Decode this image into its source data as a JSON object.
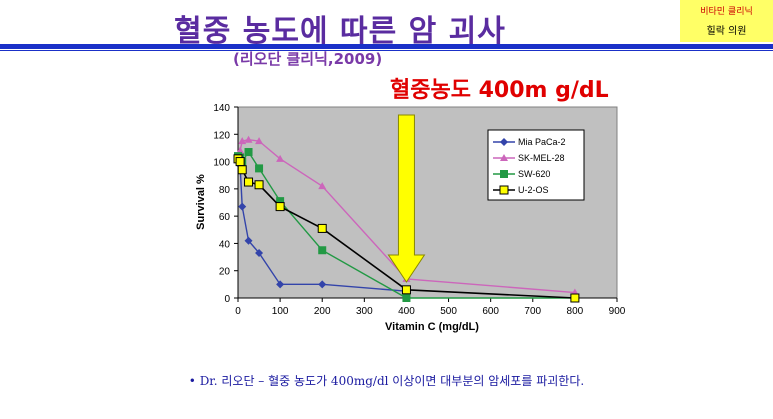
{
  "header": {
    "title": "혈중 농도에 따른 암 괴사",
    "subtitle": "(리오단 클리닉,2009)",
    "badge_line1": "비타민 클리닉",
    "badge_line2": "힐락 의원",
    "highlight": "혈중농도 400m g/dL"
  },
  "footer": {
    "note": "• Dr. 리오단 – 혈중 농도가 400mg/dl 이상이면 대부분의 암세포를 파괴한다."
  },
  "colors": {
    "title": "#5a2ca0",
    "highlight": "#e00000",
    "arrow_fill": "#ffff00",
    "plot_bg": "#c0c0c0"
  },
  "chart_data": {
    "type": "line",
    "xlabel": "Vitamin C (mg/dL)",
    "ylabel": "Survival %",
    "xlim": [
      0,
      900
    ],
    "ylim": [
      0,
      140
    ],
    "xticks": [
      0,
      100,
      200,
      300,
      400,
      500,
      600,
      700,
      800,
      900
    ],
    "yticks": [
      0,
      20,
      40,
      60,
      80,
      100,
      120,
      140
    ],
    "grid": false,
    "legend_position": "top-right",
    "series": [
      {
        "name": "Mia PaCa-2",
        "color": "#3344aa",
        "marker": "diamond",
        "x": [
          0,
          5,
          10,
          25,
          50,
          100,
          200,
          400
        ],
        "y": [
          100,
          97,
          67,
          42,
          33,
          10,
          10,
          5
        ]
      },
      {
        "name": "SK-MEL-28",
        "color": "#cc66bb",
        "marker": "triangle",
        "x": [
          0,
          5,
          10,
          25,
          50,
          100,
          200,
          400,
          800
        ],
        "y": [
          104,
          108,
          115,
          116,
          115,
          102,
          82,
          14,
          4
        ]
      },
      {
        "name": "SW-620",
        "color": "#229944",
        "marker": "square",
        "x": [
          0,
          5,
          10,
          25,
          50,
          100,
          200,
          400,
          800
        ],
        "y": [
          104,
          103,
          100,
          107,
          95,
          71,
          35,
          0,
          0
        ]
      },
      {
        "name": "U-2-OS",
        "color": "#000000",
        "marker": "square-yellow",
        "x": [
          0,
          5,
          10,
          25,
          50,
          100,
          200,
          400,
          800
        ],
        "y": [
          102,
          100,
          94,
          85,
          83,
          67,
          51,
          6,
          0
        ]
      }
    ],
    "annotation": {
      "type": "arrow",
      "x": 400
    }
  }
}
